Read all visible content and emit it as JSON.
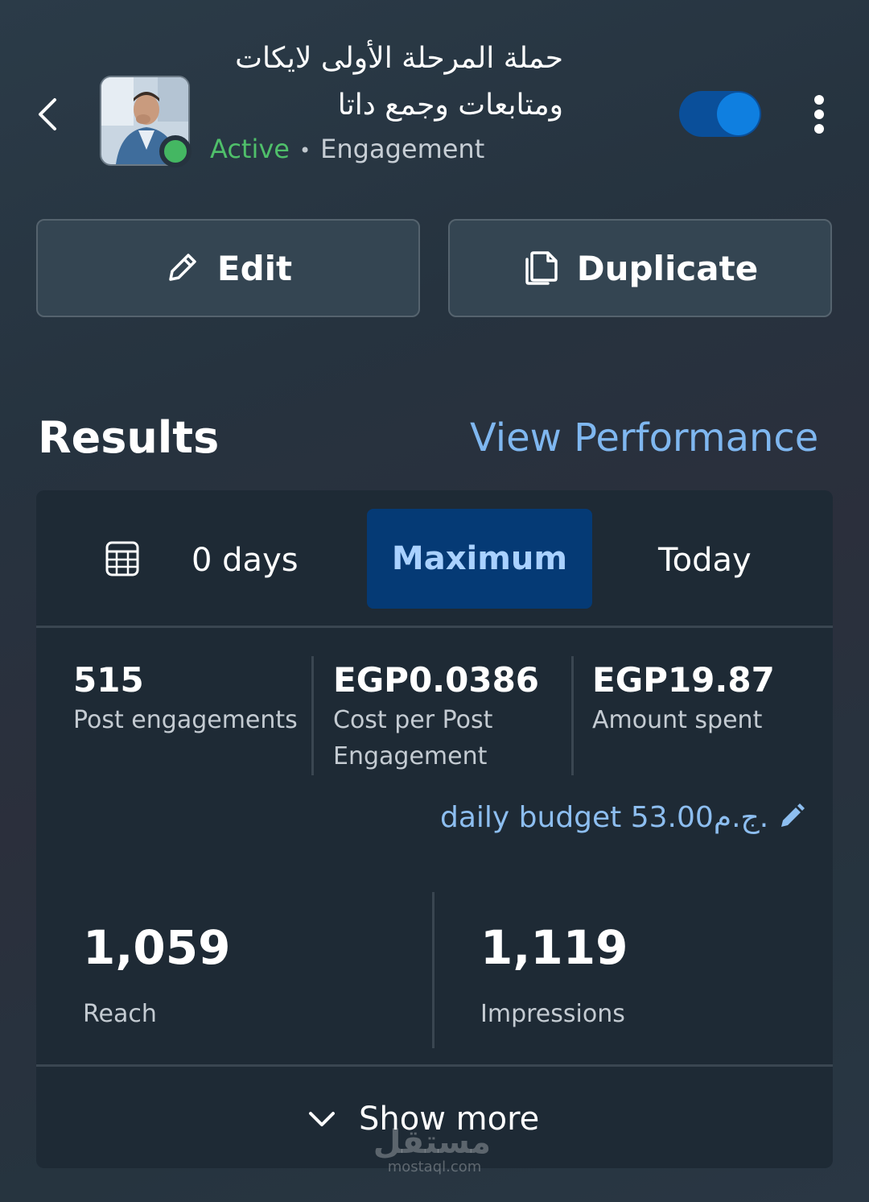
{
  "header": {
    "title": "حملة المرحلة الأولى لايكات ومتابعات وجمع داتا",
    "status": "Active",
    "separator": "•",
    "objective": "Engagement",
    "toggle_on": true,
    "colors": {
      "active": "#4fbf6a",
      "toggle": "#0f7fe0"
    }
  },
  "actions": {
    "edit_label": "Edit",
    "duplicate_label": "Duplicate"
  },
  "results": {
    "heading": "Results",
    "view_performance": "View Performance"
  },
  "date_range": {
    "days": "0 days",
    "maximum": "Maximum",
    "today": "Today",
    "selected": "Maximum"
  },
  "metrics": [
    {
      "value": "515",
      "label": "Post engagements"
    },
    {
      "value": "EGP0.0386",
      "label": "Cost per Post Engagement"
    },
    {
      "value": "EGP19.87",
      "label": "Amount spent"
    }
  ],
  "budget": {
    "text": "daily budget 53.00ج.م."
  },
  "summary": [
    {
      "value": "1,059",
      "label": "Reach"
    },
    {
      "value": "1,119",
      "label": "Impressions"
    }
  ],
  "footer": {
    "show_more": "Show more"
  },
  "watermark": {
    "arabic": "مستقل",
    "domain": "mostaql.com"
  }
}
